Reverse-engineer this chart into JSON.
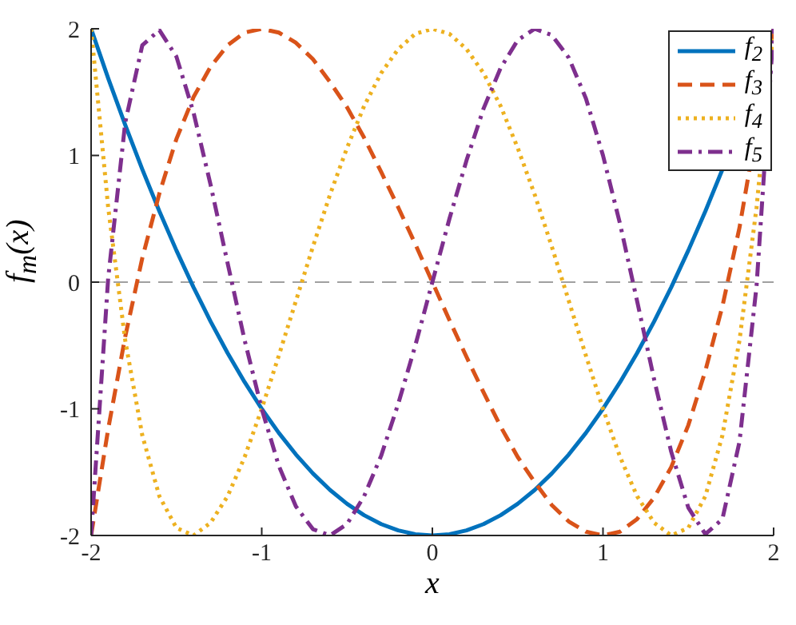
{
  "chart_data": {
    "type": "line",
    "xlabel": "x",
    "ylabel": "f$_{m}$(x)",
    "x": [
      -2,
      -1.9,
      -1.8,
      -1.7,
      -1.6,
      -1.5,
      -1.4,
      -1.3,
      -1.2,
      -1.1,
      -1,
      -0.9,
      -0.8,
      -0.7,
      -0.6,
      -0.5,
      -0.4,
      -0.3,
      -0.2,
      -0.1,
      0,
      0.1,
      0.2,
      0.3,
      0.4,
      0.5,
      0.6,
      0.7,
      0.8,
      0.9,
      1,
      1.1,
      1.2,
      1.3,
      1.4,
      1.5,
      1.6,
      1.7,
      1.8,
      1.9,
      2
    ],
    "series": [
      {
        "name": "f$_{2}$",
        "color": "#0072bd",
        "line_style": "solid",
        "values": [
          2,
          1.61,
          1.24,
          0.89,
          0.56,
          0.25,
          -0.04,
          -0.31,
          -0.56,
          -0.79,
          -1,
          -1.19,
          -1.36,
          -1.51,
          -1.64,
          -1.75,
          -1.84,
          -1.91,
          -1.96,
          -1.99,
          -2,
          -1.99,
          -1.96,
          -1.91,
          -1.84,
          -1.75,
          -1.64,
          -1.51,
          -1.36,
          -1.19,
          -1,
          -0.79,
          -0.56,
          -0.31,
          -0.04,
          0.25,
          0.56,
          0.89,
          null,
          null,
          2
        ]
      },
      {
        "name": "f$_{3}$",
        "color": "#d95319",
        "line_style": "dashed",
        "values": [
          -2,
          -1.16,
          -0.43,
          0.19,
          0.7,
          1.13,
          1.46,
          1.7,
          1.87,
          1.97,
          2,
          1.97,
          1.89,
          1.76,
          1.58,
          1.38,
          1.14,
          0.87,
          0.59,
          0.3,
          0,
          -0.3,
          -0.59,
          -0.87,
          -1.14,
          -1.38,
          -1.58,
          -1.76,
          -1.89,
          -1.97,
          -2,
          -1.97,
          -1.87,
          -1.7,
          -1.46,
          -1.13,
          -0.7,
          -0.19,
          0.43,
          null,
          2
        ]
      },
      {
        "name": "f$_{4}$",
        "color": "#edb120",
        "line_style": "dotted",
        "values": [
          2,
          0.59,
          -0.46,
          -1.21,
          -1.69,
          -1.94,
          -2,
          -1.9,
          -1.69,
          -1.38,
          -1,
          -0.58,
          -0.15,
          0.28,
          0.69,
          1.06,
          1.39,
          1.65,
          1.84,
          1.96,
          2,
          1.96,
          1.84,
          1.65,
          1.39,
          1.06,
          0.69,
          0.28,
          -0.15,
          -0.58,
          -1,
          -1.38,
          -1.69,
          -1.9,
          -2,
          -1.94,
          -1.69,
          -1.21,
          -0.46,
          0.59,
          2
        ]
      },
      {
        "name": "f$_{5}$",
        "color": "#7e2f8e",
        "line_style": "dashdot",
        "values": [
          -2,
          0.03,
          1.26,
          1.87,
          1.99,
          1.78,
          1.34,
          0.77,
          0.15,
          -0.46,
          -1,
          -1.45,
          -1.77,
          -1.95,
          -2,
          -1.91,
          -1.69,
          -1.37,
          -0.96,
          -0.5,
          0,
          0.5,
          0.96,
          1.37,
          1.69,
          1.91,
          2,
          1.95,
          1.77,
          1.45,
          1,
          0.46,
          -0.15,
          -0.77,
          -1.34,
          -1.78,
          -1.99,
          -1.87,
          -1.26,
          -0.03,
          2
        ]
      }
    ],
    "xlim": [
      -2,
      2
    ],
    "xticks": [
      -2,
      -1,
      0,
      1,
      2
    ],
    "ylim": [
      -2,
      2
    ],
    "yticks": [
      -2,
      -1,
      0,
      1,
      2
    ],
    "ref_lines": [
      {
        "axis": "y",
        "value": 0,
        "color": "#a0a0a0",
        "line_style": "dashed"
      }
    ],
    "legend": "top right",
    "marker": "none"
  }
}
